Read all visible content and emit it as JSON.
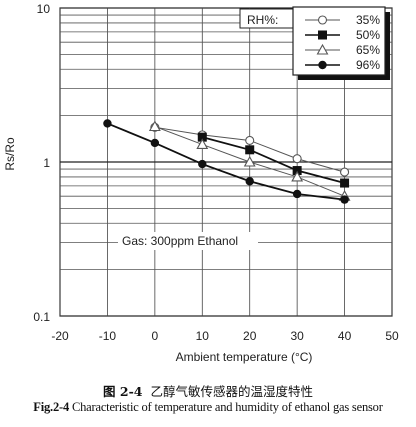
{
  "chart_data": {
    "type": "line",
    "xlabel": "Ambient temperature (°C)",
    "ylabel": "Rs/Ro",
    "xlim": [
      -20,
      50
    ],
    "ylim": [
      0.1,
      10
    ],
    "yscale": "log",
    "xticks": [
      "-20",
      "-10",
      "0",
      "10",
      "20",
      "30",
      "40",
      "50"
    ],
    "yticks": [
      "10",
      "1",
      "0.1"
    ],
    "grid": true,
    "annotation": "Gas: 300ppm Ethanol",
    "legend": {
      "title": "RH%:",
      "position": "top-right"
    },
    "series": [
      {
        "name": "35%",
        "marker": "circle-open",
        "color": "#555555",
        "x": [
          0,
          10,
          20,
          30,
          40
        ],
        "y": [
          1.68,
          1.5,
          1.38,
          1.05,
          0.86
        ]
      },
      {
        "name": "50%",
        "marker": "square-filled",
        "color": "#111111",
        "x": [
          10,
          20,
          30,
          40
        ],
        "y": [
          1.45,
          1.2,
          0.88,
          0.73
        ]
      },
      {
        "name": "65%",
        "marker": "triangle-open",
        "color": "#555555",
        "x": [
          0,
          10,
          20,
          30,
          40
        ],
        "y": [
          1.7,
          1.3,
          1.0,
          0.8,
          0.6
        ]
      },
      {
        "name": "96%",
        "marker": "circle-filled",
        "color": "#111111",
        "x": [
          -10,
          0,
          10,
          20,
          30,
          40
        ],
        "y": [
          1.78,
          1.33,
          0.97,
          0.75,
          0.62,
          0.57
        ]
      }
    ]
  },
  "caption": {
    "cn_fig": "图 2-4",
    "cn_text": "乙醇气敏传感器的温湿度特性",
    "en_fig": "Fig.2-4",
    "en_text": " Characteristic of temperature and humidity of ethanol gas sensor"
  }
}
